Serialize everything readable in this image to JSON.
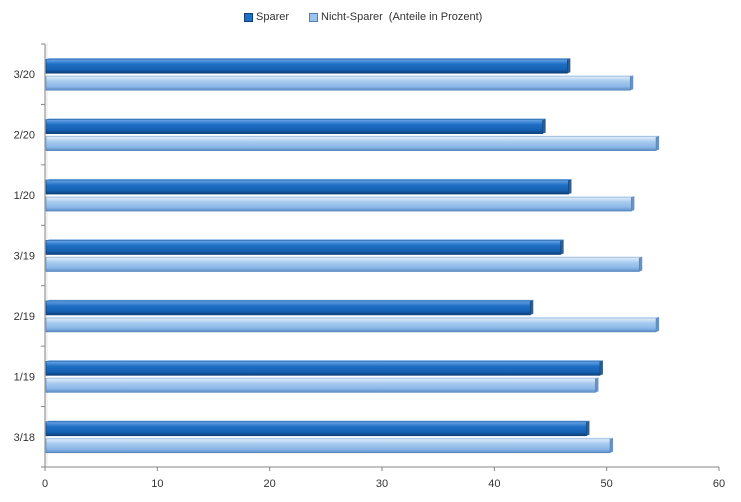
{
  "chart_data": {
    "type": "bar",
    "orientation": "horizontal",
    "categories": [
      "3/20",
      "2/20",
      "1/20",
      "3/19",
      "2/19",
      "1/19",
      "3/18"
    ],
    "series": [
      {
        "name": "Sparer",
        "values": [
          46.5,
          44.3,
          46.6,
          45.9,
          43.2,
          49.4,
          48.2
        ],
        "color": "#1f6fc5"
      },
      {
        "name": "Nicht-Sparer",
        "values": [
          52.1,
          54.4,
          52.2,
          52.9,
          54.4,
          49.0,
          50.3
        ],
        "color": "#9cc3ec"
      }
    ],
    "legend_note": "(Anteile in Prozent)",
    "xlim": [
      0,
      60
    ],
    "xticks": [
      "0",
      "10",
      "20",
      "30",
      "40",
      "50",
      "60"
    ],
    "grid": false,
    "legend_position": "top-center"
  }
}
